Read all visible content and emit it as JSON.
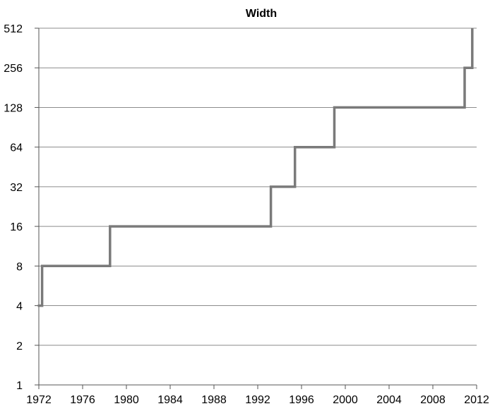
{
  "chart_data": {
    "type": "line",
    "title": "Width",
    "xlabel": "",
    "ylabel": "",
    "x_scale": "linear",
    "y_scale": "log2",
    "xlim": [
      1972,
      2012
    ],
    "ylim": [
      1,
      512
    ],
    "x_ticks": [
      "1972",
      "1976",
      "1980",
      "1984",
      "1988",
      "1992",
      "1996",
      "2000",
      "2004",
      "2008",
      "2012"
    ],
    "y_ticks": [
      "1",
      "2",
      "4",
      "8",
      "16",
      "32",
      "64",
      "128",
      "256",
      "512"
    ],
    "grid": "horizontal",
    "legend": "none",
    "line_style": "step",
    "colors": {
      "line": "#7a7a7a",
      "grid": "#8c8c8c",
      "axis": "#555555"
    },
    "series": [
      {
        "x": [
          1971.9,
          1972.3,
          1972.3,
          1978.5,
          1978.5,
          1993.2,
          1993.2,
          1995.4,
          1995.4,
          1999.0,
          1999.0,
          2010.9,
          2010.9,
          2011.6,
          2011.6
        ],
        "y": [
          4,
          4,
          8,
          8,
          16,
          16,
          32,
          32,
          64,
          64,
          128,
          128,
          256,
          256,
          512
        ]
      }
    ]
  }
}
